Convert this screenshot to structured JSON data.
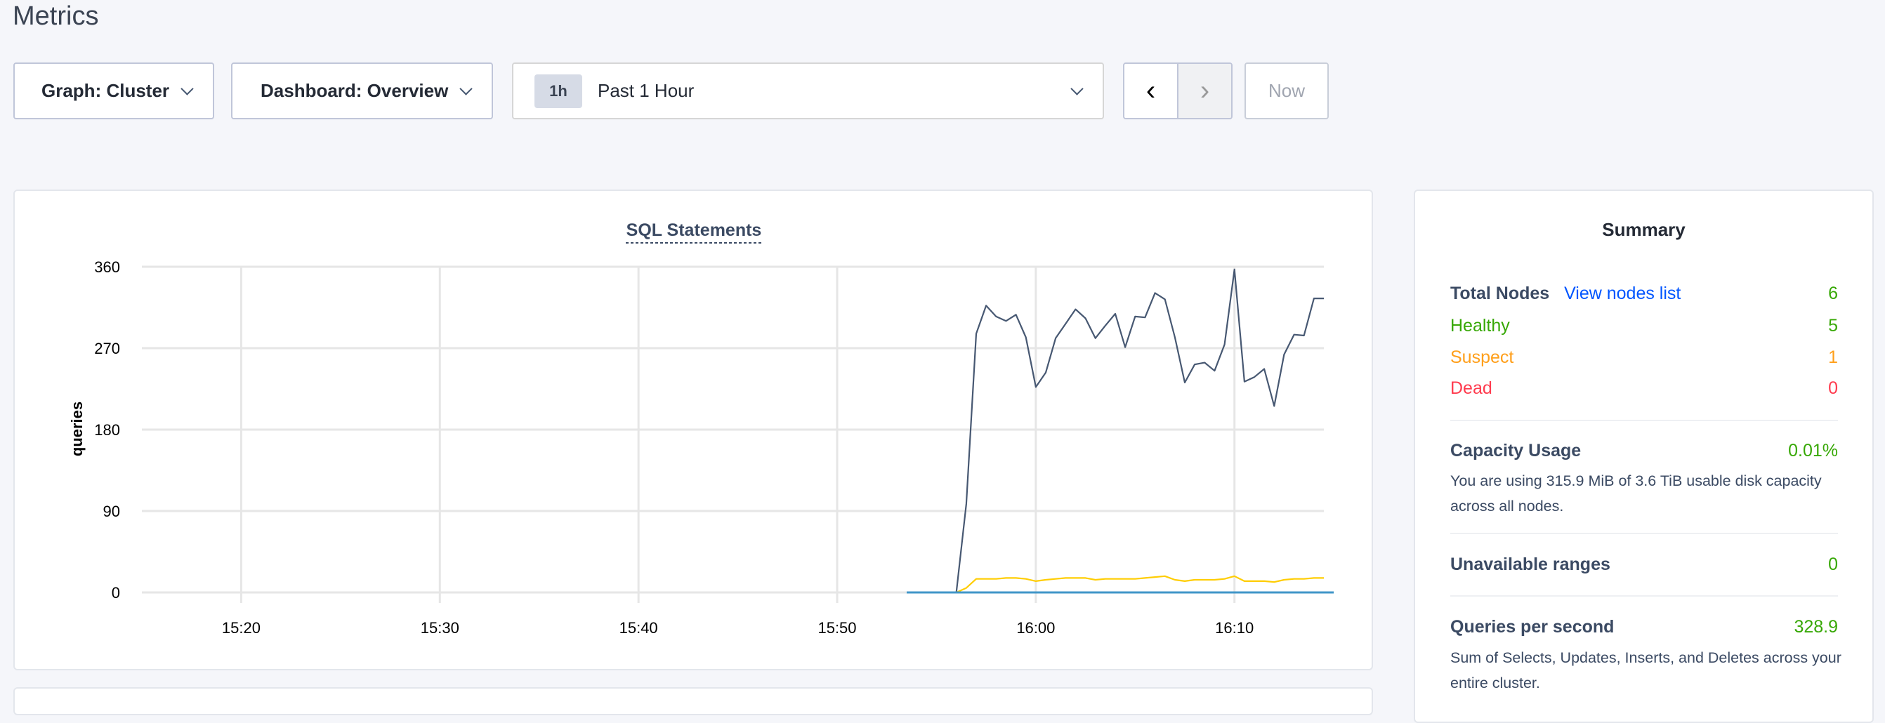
{
  "page_title": "Metrics",
  "controls": {
    "graph": "Graph: Cluster",
    "dashboard": "Dashboard: Overview",
    "time_badge": "1h",
    "time_range": "Past 1 Hour",
    "prev": "‹",
    "next": "›",
    "now": "Now"
  },
  "chart_data": {
    "type": "line",
    "title": "SQL Statements",
    "ylabel": "queries",
    "xlabel": "",
    "ylim": [
      0,
      360
    ],
    "yticks": [
      0,
      90,
      180,
      270,
      360
    ],
    "xlim": [
      "15:15",
      "16:14:30"
    ],
    "xticks": [
      "15:20",
      "15:30",
      "15:40",
      "15:50",
      "16:00",
      "16:10"
    ],
    "grid": true,
    "series": [
      {
        "color": "#475872",
        "x_start": "15:56:00",
        "x_step_seconds": 30,
        "values": [
          0,
          98,
          286,
          317,
          305,
          300,
          307,
          282,
          227,
          243,
          281,
          297,
          313,
          303,
          281,
          295,
          308,
          271,
          305,
          304,
          331,
          324,
          282,
          232,
          252,
          254,
          245,
          274,
          357,
          233,
          238,
          247,
          206,
          263,
          285,
          284,
          325,
          325
        ]
      },
      {
        "color": "#ffcd02",
        "x_start": "15:56:00",
        "x_step_seconds": 30,
        "values": [
          0,
          5,
          15,
          15,
          15,
          16,
          16,
          15,
          12.5,
          14,
          15,
          16,
          16,
          16,
          14,
          15,
          15,
          15,
          15,
          16,
          17,
          18,
          14,
          12.5,
          14,
          14,
          14,
          15,
          18,
          12.5,
          12.5,
          12.5,
          11.5,
          14,
          15,
          15,
          16,
          16
        ]
      },
      {
        "color": "#4196c8",
        "x_start": "15:53:30",
        "x_step_seconds": 30,
        "values": [
          0,
          0,
          0,
          0,
          0,
          0,
          0,
          0,
          0,
          0,
          0,
          0,
          0,
          0,
          0,
          0,
          0,
          0,
          0,
          0,
          0,
          0,
          0,
          0,
          0,
          0,
          0,
          0,
          0,
          0,
          0,
          0,
          0,
          0,
          0,
          0,
          0,
          0,
          0,
          0,
          0,
          0,
          0,
          0
        ]
      }
    ]
  },
  "summary": {
    "title": "Summary",
    "total_nodes_label": "Total Nodes",
    "view_nodes_link": "View nodes list",
    "total_nodes": "6",
    "healthy_label": "Healthy",
    "healthy": "5",
    "suspect_label": "Suspect",
    "suspect": "1",
    "dead_label": "Dead",
    "dead": "0",
    "capacity_label": "Capacity Usage",
    "capacity": "0.01%",
    "capacity_desc": "You are using 315.9 MiB of 3.6 TiB usable disk capacity across all nodes.",
    "unavailable_label": "Unavailable ranges",
    "unavailable": "0",
    "qps_label": "Queries per second",
    "qps": "328.9",
    "qps_desc": "Sum of Selects, Updates, Inserts, and Deletes across your entire cluster."
  }
}
